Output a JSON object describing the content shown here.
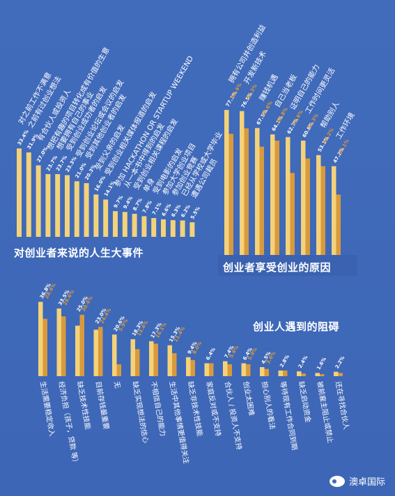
{
  "chart_data": [
    {
      "type": "bar",
      "title": "对创业者来说的人生大事件",
      "categories": [
        "对之前工作不满意",
        "之前有过创业想法",
        "有合伙人或投资人",
        "想把有趣的项目转化成有价值的生意",
        "想要拥有自己的事业",
        "受到创业成功者的启发",
        "受到创业论坛或会议的启发",
        "受到其他创业者的启发",
        "受到父亲的启发",
        "受到创业相关媒体报道的启发",
        "参加 HACKATHON OR STARTUP WEEKEND",
        "从一本书中得到的启发",
        "受到创业相关课程的启发",
        "单身",
        "受到电影的启发",
        "参加大学创业项目",
        "参加创业竞赛",
        "已经从学校或大学毕业",
        "遭遇公司裁员"
      ],
      "value_labels": [
        "33.4%",
        "31.9%",
        "27.0%",
        "23.7%",
        "23.7%",
        "23.3%",
        "21.0%",
        "20.3%",
        "16.0%",
        "14.1%",
        "9.7%",
        "9.4%",
        "8.7%",
        "7.8%",
        "7.1%",
        "6.6%",
        "6.3%",
        "6.2%",
        "5.5%"
      ],
      "values": [
        33.4,
        31.9,
        27.0,
        23.7,
        23.7,
        23.3,
        21.0,
        20.3,
        16.0,
        14.1,
        9.7,
        9.4,
        8.7,
        7.8,
        7.1,
        6.6,
        6.3,
        6.2,
        5.5
      ]
    },
    {
      "type": "bar",
      "title": "创业者享受创业的原因",
      "categories": [
        "拥有公司并创造利益",
        "开发新技术",
        "赚钱机遇",
        "自己当老板",
        "证明自己的能力",
        "工作时间更灵活",
        "帮助别人",
        "工作环境"
      ],
      "series": [
        {
          "values": [
            77.1,
            76.5,
            67.5,
            64.1,
            62.7,
            60.8,
            53.1,
            47.2
          ]
        },
        {
          "values": [
            64.4,
            67.3,
            57.6,
            60.8,
            43.6,
            51.3,
            47.2,
            32.1
          ]
        }
      ],
      "value_labels": [
        [
          "77.1%",
          "64.4%"
        ],
        [
          "76.5%",
          "67.3%"
        ],
        [
          "67.5%",
          "57.6%"
        ],
        [
          "64.1%",
          "60.8%"
        ],
        [
          "62.7%",
          "43.6%"
        ],
        [
          "60.8%",
          "51.3%"
        ],
        [
          "53.1%",
          "47.2%"
        ],
        [
          "47.2%",
          "32.1%"
        ]
      ]
    },
    {
      "type": "bar",
      "title": "创业人遇到的阻碍",
      "categories": [
        "生活需要稳定收入",
        "经济负担（孩子，贷款 等）",
        "缺乏技术性技能",
        "目前存钱最重要",
        "无",
        "缺乏实现想法的信心",
        "不相信自己的能力",
        "生活中其他事情更值得关注",
        "缺乏非技术性技能",
        "家庭反对或不支持",
        "合伙人 / 投资人不支持",
        "创业太困难",
        "担心别人的看法",
        "等待现有工作合同到期",
        "缺乏启动资金",
        "被前雇主阻止或禁止",
        "还在寻找合伙人"
      ],
      "series": [
        {
          "values": [
            36.8,
            33.5,
            25.0,
            23.0,
            20.6,
            18.3,
            17.3,
            15.3,
            9.4,
            6.4,
            7.4,
            6.4,
            4.5,
            2.8,
            2.4,
            1.6,
            2.2
          ]
        },
        {
          "values": [
            28.4,
            29.6,
            30.4,
            24.4,
            5.9,
            13.4,
            16.1,
            11.4,
            8.0,
            6.4,
            5.9,
            5.9,
            3.6,
            2.8,
            1.3,
            1.0,
            1.6
          ]
        }
      ],
      "value_labels": [
        [
          "36.8%",
          "28.4%"
        ],
        [
          "33.5%",
          "29.6%"
        ],
        [
          "25.0%",
          "30.4%"
        ],
        [
          "23.0%",
          "24.4%"
        ],
        [
          "20.6%",
          "5.9%"
        ],
        [
          "18.3%",
          "13.4%"
        ],
        [
          "17.3%",
          "16.1%"
        ],
        [
          "15.3%",
          "11.4%"
        ],
        [
          "9.4%",
          "8.0%"
        ],
        [
          "6.4%",
          ""
        ],
        [
          "7.4%",
          "5.9%"
        ],
        [
          "6.4%",
          "5.9%"
        ],
        [
          "4.5%",
          "3.6%"
        ],
        [
          "2.8%",
          ""
        ],
        [
          "2.4%",
          ""
        ],
        [
          "1.6%",
          ""
        ],
        [
          "2.2%",
          ""
        ]
      ]
    }
  ],
  "colors": {
    "background": "#3f68b8",
    "bar_light": "#f3d27a",
    "bar_dark": "#d89a3c",
    "text": "#ffffff"
  },
  "watermark": {
    "text": "澳卓国际",
    "icon": "wechat-icon"
  }
}
